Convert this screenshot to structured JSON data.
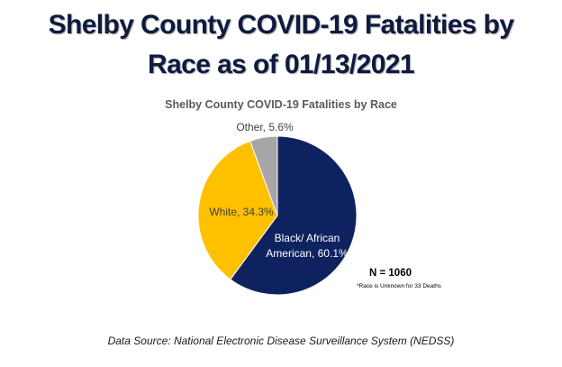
{
  "title_line1": "Shelby County COVID-19 Fatalities by",
  "title_line2": "Race as of 01/13/2021",
  "chart_data": {
    "type": "pie",
    "title": "Shelby County COVID-19 Fatalities by Race",
    "slices": [
      {
        "label": "Black/ African American",
        "value": 60.1,
        "text_line1": "Black/ African",
        "text_line2": "American, 60.1%",
        "color": "#0f2260"
      },
      {
        "label": "White",
        "value": 34.3,
        "text": "White, 34.3%",
        "color": "#ffc000"
      },
      {
        "label": "Other",
        "value": 5.6,
        "text": "Other, 5.6%",
        "color": "#a6a6a6"
      }
    ]
  },
  "n_label": "N = 1060",
  "note": "*Race is Unknown for 33 Deaths",
  "source": "Data Source: National Electronic Disease Surveillance System (NEDSS)"
}
